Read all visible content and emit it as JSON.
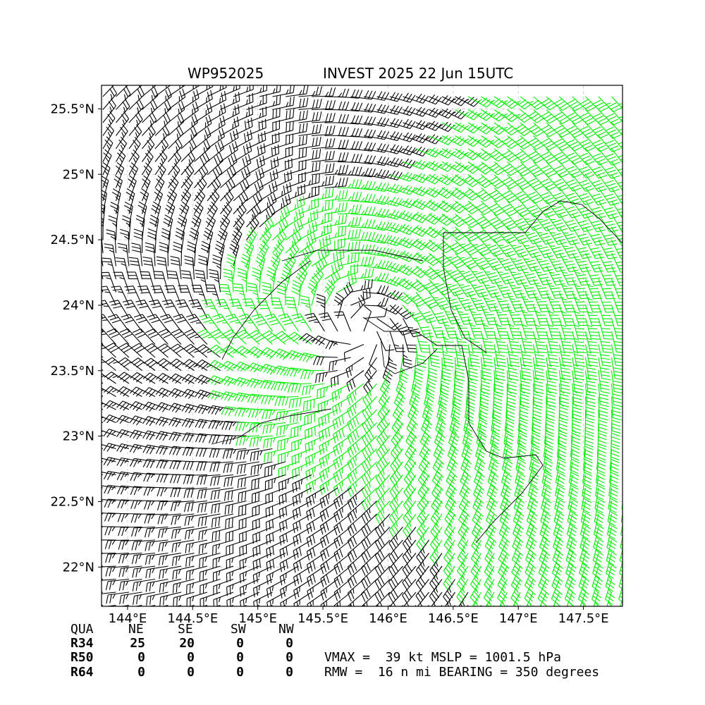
{
  "chart_data": {
    "type": "wind-barb-map",
    "title_left": "WP952025",
    "title_right": "INVEST 2025 22 Jun 15UTC",
    "xlim": [
      143.8,
      147.8
    ],
    "ylim": [
      21.7,
      25.68
    ],
    "x_ticks": [
      144.0,
      144.5,
      145.0,
      145.5,
      146.0,
      146.5,
      147.0,
      147.5
    ],
    "x_tick_labels": [
      "144°E",
      "144.5°E",
      "145°E",
      "145.5°E",
      "146°E",
      "146.5°E",
      "147°E",
      "147.5°E"
    ],
    "y_ticks": [
      22.0,
      22.5,
      23.0,
      23.5,
      24.0,
      24.5,
      25.0,
      25.5
    ],
    "y_tick_labels": [
      "22°N",
      "22.5°N",
      "23°N",
      "23.5°N",
      "24°N",
      "24.5°N",
      "25°N",
      "25.5°N"
    ],
    "grid": true,
    "storm_center": {
      "lon": 145.85,
      "lat": 23.78
    },
    "vmax_kt": 39,
    "rmw_nmi": 16,
    "barb_colors": {
      "below_34": "#000000",
      "34_to_50": "#00ee00",
      "50_plus": "#ffaa00"
    }
  },
  "radii_table": {
    "headers": [
      "QUA",
      "NE",
      "SE",
      "SW",
      "NW"
    ],
    "rows": [
      {
        "label": "R34",
        "values": [
          "25",
          "20",
          "0",
          "0"
        ]
      },
      {
        "label": "R50",
        "values": [
          "0",
          "0",
          "0",
          "0"
        ]
      },
      {
        "label": "R64",
        "values": [
          "0",
          "0",
          "0",
          "0"
        ]
      }
    ]
  },
  "summary": {
    "line1": "VMAX =  39 kt MSLP = 1001.5 hPa",
    "line2": "RMW =  16 n mi BEARING = 350 degrees"
  }
}
